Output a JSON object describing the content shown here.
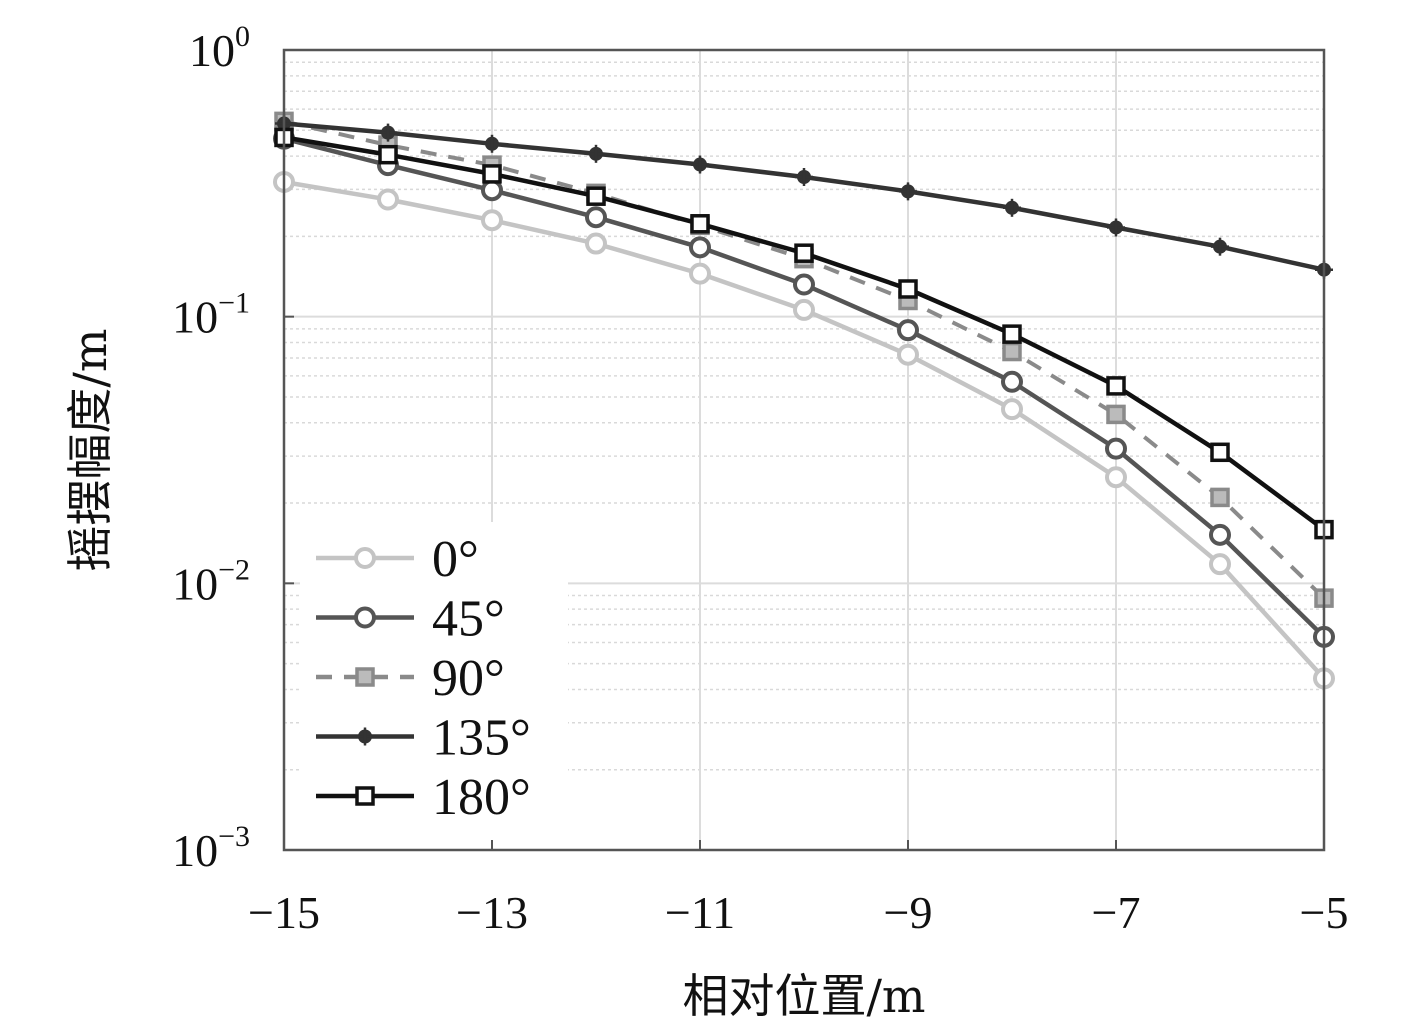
{
  "chart_data": {
    "type": "line",
    "xlabel": "相对位置/m",
    "ylabel": "摇摆幅度/m",
    "xscale": "linear",
    "yscale": "log",
    "xlim": [
      -15,
      -5
    ],
    "ylim": [
      0.001,
      1
    ],
    "xticks": [
      -15,
      -13,
      -11,
      -9,
      -7,
      -5
    ],
    "xtick_labels": [
      "−15",
      "−13",
      "−11",
      "−9",
      "−7",
      "−5"
    ],
    "ytick_labels": [
      {
        "base": "10",
        "exp": "0"
      },
      {
        "base": "10",
        "exp": "−1"
      },
      {
        "base": "10",
        "exp": "−2"
      },
      {
        "base": "10",
        "exp": "−3"
      }
    ],
    "grid": true,
    "legend_position": "bottom-left",
    "x": [
      -15,
      -14,
      -13,
      -12,
      -11,
      -10,
      -9,
      -8,
      -7,
      -6,
      -5
    ],
    "series": [
      {
        "name": "0°",
        "label": "0°",
        "color": "#c4c4c4",
        "dash": "solid",
        "marker": "circle",
        "values": [
          0.32,
          0.275,
          0.23,
          0.188,
          0.145,
          0.106,
          0.072,
          0.045,
          0.025,
          0.0118,
          0.0044
        ]
      },
      {
        "name": "45°",
        "label": "45°",
        "color": "#555555",
        "dash": "solid",
        "marker": "circle",
        "values": [
          0.465,
          0.37,
          0.298,
          0.236,
          0.182,
          0.132,
          0.089,
          0.057,
          0.032,
          0.0152,
          0.0063
        ]
      },
      {
        "name": "90°",
        "label": "90°",
        "color": "#8a8a8a",
        "dash": "dashed",
        "marker": "square-filled",
        "values": [
          0.54,
          0.44,
          0.37,
          0.29,
          0.22,
          0.165,
          0.115,
          0.074,
          0.043,
          0.021,
          0.0088
        ]
      },
      {
        "name": "135°",
        "label": "135°",
        "color": "#333333",
        "dash": "solid",
        "marker": "star",
        "values": [
          0.53,
          0.49,
          0.445,
          0.408,
          0.372,
          0.334,
          0.295,
          0.256,
          0.216,
          0.183,
          0.15
        ]
      },
      {
        "name": "180°",
        "label": "180°",
        "color": "#111111",
        "dash": "solid",
        "marker": "square",
        "values": [
          0.47,
          0.405,
          0.343,
          0.283,
          0.223,
          0.173,
          0.127,
          0.086,
          0.055,
          0.031,
          0.0159
        ]
      }
    ]
  }
}
